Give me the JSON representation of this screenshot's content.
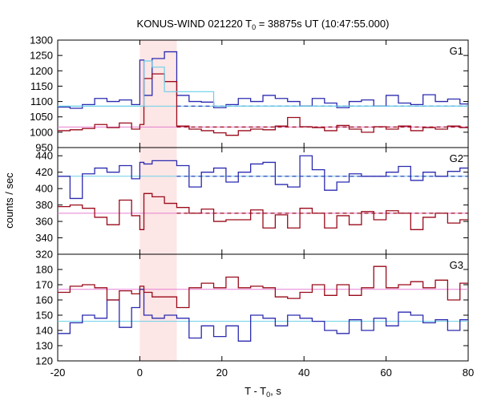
{
  "chart_data": {
    "type": "line",
    "title_main": "KONUS-WIND 021220 T",
    "title_sub": "0",
    "title_rest": " = 38875s UT (10:47:55.000)",
    "xlabel_main": "T - T",
    "xlabel_sub": "0",
    "xlabel_rest": ", s",
    "ylabel": "counts / sec",
    "xlim": [
      -20,
      80
    ],
    "x_ticks": [
      "-20",
      "0",
      "20",
      "40",
      "60",
      "80"
    ],
    "shaded_interval": [
      0,
      9
    ],
    "colors": {
      "blue": "#2b2bb0",
      "dark_red": "#9a0a1a",
      "cyan": "#6ad0e8",
      "pink": "#e67fd0",
      "shade": "#fde6e6"
    },
    "panels": [
      {
        "label": "G1",
        "ylim": [
          950,
          1300
        ],
        "y_ticks": [
          "950",
          "1000",
          "1050",
          "1100",
          "1150",
          "1200",
          "1250",
          "1300"
        ],
        "bkg_blue": 1085,
        "bkg_red": 1017,
        "series": [
          {
            "color": "blue",
            "x": [
              -20,
              -17,
              -14,
              -11,
              -8,
              -5,
              -2,
              0,
              1,
              3,
              6,
              9,
              12,
              15,
              18,
              21,
              24,
              27,
              30,
              33,
              36,
              39,
              42,
              45,
              48,
              51,
              54,
              57,
              60,
              63,
              66,
              69,
              72,
              75,
              78,
              80
            ],
            "y": [
              1082,
              1078,
              1090,
              1110,
              1100,
              1105,
              1090,
              1235,
              1120,
              1240,
              1262,
              1120,
              1100,
              1098,
              1080,
              1090,
              1110,
              1100,
              1120,
              1110,
              1100,
              1085,
              1110,
              1095,
              1080,
              1100,
              1105,
              1085,
              1120,
              1095,
              1090,
              1122,
              1100,
              1108,
              1092,
              1092
            ]
          },
          {
            "color": "dark_red",
            "x": [
              -20,
              -17,
              -14,
              -11,
              -8,
              -5,
              -2,
              0,
              1,
              3,
              6,
              9,
              12,
              15,
              18,
              21,
              24,
              27,
              30,
              33,
              36,
              39,
              42,
              45,
              48,
              51,
              54,
              57,
              60,
              63,
              66,
              69,
              72,
              75,
              78,
              80
            ],
            "y": [
              1005,
              1008,
              1012,
              1025,
              1015,
              1030,
              1010,
              1025,
              1175,
              1190,
              1165,
              1020,
              1010,
              1005,
              998,
              990,
              1005,
              1010,
              1008,
              1020,
              1048,
              1018,
              1015,
              1005,
              1022,
              1010,
              1000,
              1018,
              1010,
              1020,
              1005,
              1015,
              1010,
              1020,
              1015,
              1015
            ]
          },
          {
            "color": "cyan",
            "x": [
              -20,
              -17,
              -14,
              -11,
              -8,
              -5,
              -2,
              0,
              1,
              3,
              6,
              9,
              12,
              15,
              18,
              80
            ],
            "y": [
              1085,
              1085,
              1085,
              1085,
              1085,
              1085,
              1085,
              1085,
              1232,
              1212,
              1132,
              1132,
              1132,
              1132,
              1085,
              1085
            ]
          }
        ]
      },
      {
        "label": "G2",
        "ylim": [
          320,
          450
        ],
        "y_ticks": [
          "320",
          "340",
          "360",
          "380",
          "400",
          "420",
          "440"
        ],
        "bkg_blue": 415,
        "bkg_red": 370,
        "series": [
          {
            "color": "blue",
            "x": [
              -20,
              -17,
              -14,
              -11,
              -8,
              -5,
              -2,
              0,
              1,
              3,
              6,
              9,
              12,
              15,
              18,
              21,
              24,
              27,
              30,
              33,
              36,
              39,
              42,
              45,
              48,
              51,
              54,
              57,
              60,
              63,
              66,
              69,
              72,
              75,
              78,
              80
            ],
            "y": [
              415,
              388,
              418,
              425,
              420,
              428,
              412,
              432,
              430,
              434,
              434,
              428,
              402,
              420,
              425,
              408,
              420,
              430,
              432,
              405,
              402,
              440,
              423,
              398,
              408,
              418,
              415,
              415,
              420,
              427,
              410,
              420,
              415,
              421,
              425,
              425
            ]
          },
          {
            "color": "dark_red",
            "x": [
              -20,
              -17,
              -14,
              -11,
              -8,
              -5,
              -2,
              0,
              1,
              3,
              6,
              9,
              12,
              15,
              18,
              21,
              24,
              27,
              30,
              33,
              36,
              39,
              42,
              45,
              48,
              51,
              54,
              57,
              60,
              63,
              66,
              69,
              72,
              75,
              78,
              80
            ],
            "y": [
              378,
              380,
              376,
              365,
              356,
              386,
              367,
              350,
              394,
              390,
              382,
              377,
              370,
              375,
              360,
              362,
              362,
              374,
              352,
              368,
              352,
              376,
              370,
              352,
              367,
              356,
              372,
              362,
              373,
              370,
              350,
              365,
              370,
              358,
              362,
              362
            ]
          }
        ]
      },
      {
        "label": "G3",
        "ylim": [
          120,
          190
        ],
        "y_ticks": [
          "120",
          "130",
          "140",
          "150",
          "160",
          "170",
          "180"
        ],
        "bkg_blue": 146,
        "bkg_red": 167,
        "series": [
          {
            "color": "blue",
            "x": [
              -20,
              -17,
              -14,
              -11,
              -8,
              -5,
              -2,
              0,
              1,
              3,
              6,
              9,
              12,
              15,
              18,
              21,
              24,
              27,
              30,
              33,
              36,
              39,
              42,
              45,
              48,
              51,
              54,
              57,
              60,
              63,
              66,
              69,
              72,
              75,
              78,
              80
            ],
            "y": [
              138,
              145,
              150,
              148,
              160,
              142,
              155,
              167,
              150,
              148,
              150,
              148,
              135,
              143,
              136,
              143,
              133,
              150,
              148,
              143,
              150,
              148,
              146,
              140,
              138,
              147,
              140,
              148,
              143,
              152,
              150,
              145,
              147,
              140,
              147,
              147
            ]
          },
          {
            "color": "dark_red",
            "x": [
              -20,
              -17,
              -14,
              -11,
              -8,
              -5,
              -2,
              0,
              1,
              3,
              6,
              9,
              12,
              15,
              18,
              21,
              24,
              27,
              30,
              33,
              36,
              39,
              42,
              45,
              48,
              51,
              54,
              57,
              60,
              63,
              66,
              69,
              72,
              75,
              78,
              80
            ],
            "y": [
              165,
              169,
              170,
              168,
              160,
              166,
              164,
              169,
              165,
              162,
              162,
              155,
              168,
              171,
              168,
              175,
              168,
              169,
              168,
              162,
              161,
              165,
              170,
              163,
              170,
              163,
              168,
              182,
              168,
              170,
              172,
              168,
              173,
              160,
              171,
              171
            ]
          }
        ]
      }
    ]
  }
}
